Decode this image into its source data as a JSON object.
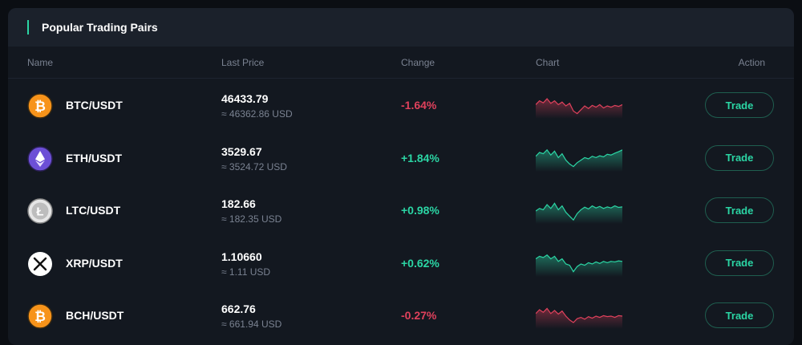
{
  "panel": {
    "title": "Popular Trading Pairs"
  },
  "table": {
    "columns": {
      "name": "Name",
      "last_price": "Last Price",
      "change": "Change",
      "chart": "Chart",
      "action": "Action"
    },
    "rows": [
      {
        "icon": "bitcoin-icon",
        "icon_color": "#f7931a",
        "pair": "BTC/USDT",
        "price": "46433.79",
        "usd": "≈ 46362.86 USD",
        "change": "-1.64%",
        "direction": "down",
        "spark": [
          0.55,
          0.7,
          0.62,
          0.78,
          0.6,
          0.7,
          0.55,
          0.65,
          0.5,
          0.6,
          0.3,
          0.2,
          0.35,
          0.5,
          0.4,
          0.52,
          0.45,
          0.55,
          0.42,
          0.5,
          0.45,
          0.52,
          0.48,
          0.55
        ],
        "trade": "Trade"
      },
      {
        "icon": "ethereum-icon",
        "icon_color": "#6c4fd6",
        "pair": "ETH/USDT",
        "price": "3529.67",
        "usd": "≈ 3524.72 USD",
        "change": "+1.84%",
        "direction": "up",
        "spark": [
          0.6,
          0.75,
          0.7,
          0.85,
          0.65,
          0.8,
          0.55,
          0.7,
          0.45,
          0.3,
          0.2,
          0.35,
          0.45,
          0.55,
          0.5,
          0.6,
          0.55,
          0.62,
          0.58,
          0.68,
          0.65,
          0.72,
          0.78,
          0.85
        ],
        "trade": "Trade"
      },
      {
        "icon": "litecoin-icon",
        "icon_color": "#e6e6e6",
        "pair": "LTC/USDT",
        "price": "182.66",
        "usd": "≈ 182.35 USD",
        "change": "+0.98%",
        "direction": "up",
        "spark": [
          0.5,
          0.6,
          0.55,
          0.75,
          0.6,
          0.8,
          0.55,
          0.7,
          0.45,
          0.3,
          0.15,
          0.4,
          0.55,
          0.65,
          0.58,
          0.7,
          0.62,
          0.68,
          0.6,
          0.66,
          0.62,
          0.7,
          0.64,
          0.66
        ],
        "trade": "Trade"
      },
      {
        "icon": "xrp-icon",
        "icon_color": "#ffffff",
        "pair": "XRP/USDT",
        "price": "1.10660",
        "usd": "≈ 1.11 USD",
        "change": "+0.62%",
        "direction": "up",
        "spark": [
          0.7,
          0.8,
          0.75,
          0.85,
          0.7,
          0.8,
          0.6,
          0.7,
          0.5,
          0.45,
          0.2,
          0.4,
          0.5,
          0.45,
          0.55,
          0.5,
          0.58,
          0.52,
          0.6,
          0.55,
          0.6,
          0.58,
          0.62,
          0.6
        ],
        "trade": "Trade"
      },
      {
        "icon": "bitcoin-cash-icon",
        "icon_color": "#f7931a",
        "pair": "BCH/USDT",
        "price": "662.76",
        "usd": "≈ 661.94 USD",
        "change": "-0.27%",
        "direction": "down",
        "spark": [
          0.6,
          0.75,
          0.65,
          0.8,
          0.6,
          0.72,
          0.58,
          0.7,
          0.5,
          0.35,
          0.25,
          0.4,
          0.45,
          0.38,
          0.48,
          0.42,
          0.5,
          0.45,
          0.52,
          0.48,
          0.5,
          0.45,
          0.52,
          0.5
        ],
        "trade": "Trade"
      }
    ]
  },
  "colors": {
    "up": "#2bd5a4",
    "down": "#e0415c",
    "accent": "#2bd5a4"
  }
}
